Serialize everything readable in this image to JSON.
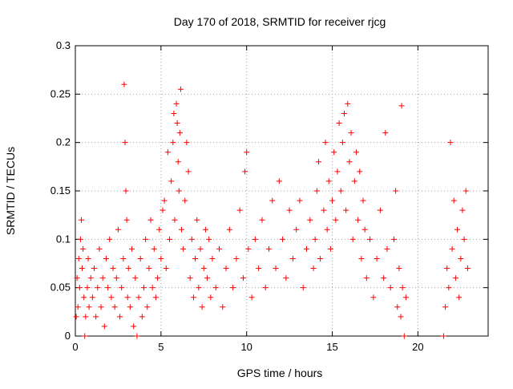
{
  "chart_data": {
    "type": "scatter",
    "title": "Day 170 of 2018, SRMTID for receiver rjcg",
    "xlabel": "GPS time / hours",
    "ylabel": "SRMTID / TECUs",
    "xlim": [
      0,
      24.1
    ],
    "ylim": [
      0,
      0.3
    ],
    "x_ticks": [
      0,
      5,
      10,
      15,
      20
    ],
    "x_tick_labels": [
      "0",
      "5",
      "10",
      "15",
      "20"
    ],
    "y_ticks": [
      0,
      0.05,
      0.1,
      0.15,
      0.2,
      0.25,
      0.3
    ],
    "y_tick_labels": [
      "0",
      "0.05",
      "0.1",
      "0.15",
      "0.2",
      "0.25",
      "0.3"
    ],
    "grid": true,
    "marker": "+",
    "series_color": "#ff0000",
    "series": [
      {
        "values": [
          [
            0.05,
            0.02
          ],
          [
            0.1,
            0.06
          ],
          [
            0.15,
            0.03
          ],
          [
            0.2,
            0.08
          ],
          [
            0.25,
            0.05
          ],
          [
            0.3,
            0.1
          ],
          [
            0.35,
            0.12
          ],
          [
            0.4,
            0.07
          ],
          [
            0.45,
            0.09
          ],
          [
            0.5,
            0.04
          ],
          [
            0.55,
            0.0
          ],
          [
            0.6,
            0.02
          ],
          [
            0.7,
            0.05
          ],
          [
            0.75,
            0.08
          ],
          [
            0.8,
            0.03
          ],
          [
            0.9,
            0.06
          ],
          [
            1.0,
            0.04
          ],
          [
            1.1,
            0.07
          ],
          [
            1.2,
            0.02
          ],
          [
            1.3,
            0.05
          ],
          [
            1.4,
            0.09
          ],
          [
            1.5,
            0.03
          ],
          [
            1.6,
            0.06
          ],
          [
            1.7,
            0.01
          ],
          [
            1.8,
            0.08
          ],
          [
            1.9,
            0.05
          ],
          [
            2.0,
            0.1
          ],
          [
            2.1,
            0.04
          ],
          [
            2.2,
            0.07
          ],
          [
            2.3,
            0.03
          ],
          [
            2.4,
            0.06
          ],
          [
            2.5,
            0.11
          ],
          [
            2.6,
            0.02
          ],
          [
            2.7,
            0.05
          ],
          [
            2.8,
            0.08
          ],
          [
            2.85,
            0.26
          ],
          [
            2.9,
            0.2
          ],
          [
            2.95,
            0.15
          ],
          [
            3.0,
            0.12
          ],
          [
            3.05,
            0.04
          ],
          [
            3.1,
            0.07
          ],
          [
            3.2,
            0.03
          ],
          [
            3.3,
            0.09
          ],
          [
            3.4,
            0.01
          ],
          [
            3.5,
            0.06
          ],
          [
            3.6,
            0.0
          ],
          [
            3.7,
            0.04
          ],
          [
            3.8,
            0.08
          ],
          [
            3.9,
            0.02
          ],
          [
            4.0,
            0.05
          ],
          [
            4.1,
            0.1
          ],
          [
            4.2,
            0.03
          ],
          [
            4.3,
            0.07
          ],
          [
            4.4,
            0.12
          ],
          [
            4.5,
            0.05
          ],
          [
            4.6,
            0.09
          ],
          [
            4.7,
            0.04
          ],
          [
            4.8,
            0.06
          ],
          [
            4.9,
            0.11
          ],
          [
            5.0,
            0.08
          ],
          [
            5.1,
            0.13
          ],
          [
            5.2,
            0.14
          ],
          [
            5.3,
            0.07
          ],
          [
            5.4,
            0.19
          ],
          [
            5.5,
            0.1
          ],
          [
            5.6,
            0.16
          ],
          [
            5.7,
            0.2
          ],
          [
            5.75,
            0.23
          ],
          [
            5.8,
            0.12
          ],
          [
            5.9,
            0.24
          ],
          [
            5.95,
            0.22
          ],
          [
            6.0,
            0.18
          ],
          [
            6.05,
            0.15
          ],
          [
            6.1,
            0.21
          ],
          [
            6.15,
            0.255
          ],
          [
            6.2,
            0.11
          ],
          [
            6.3,
            0.09
          ],
          [
            6.4,
            0.14
          ],
          [
            6.5,
            0.2
          ],
          [
            6.6,
            0.17
          ],
          [
            6.7,
            0.06
          ],
          [
            6.8,
            0.1
          ],
          [
            6.9,
            0.04
          ],
          [
            7.0,
            0.08
          ],
          [
            7.1,
            0.12
          ],
          [
            7.2,
            0.05
          ],
          [
            7.3,
            0.09
          ],
          [
            7.4,
            0.03
          ],
          [
            7.5,
            0.07
          ],
          [
            7.6,
            0.11
          ],
          [
            7.7,
            0.06
          ],
          [
            7.8,
            0.1
          ],
          [
            7.9,
            0.04
          ],
          [
            8.0,
            0.08
          ],
          [
            8.2,
            0.05
          ],
          [
            8.4,
            0.09
          ],
          [
            8.6,
            0.03
          ],
          [
            8.8,
            0.07
          ],
          [
            9.0,
            0.11
          ],
          [
            9.2,
            0.05
          ],
          [
            9.4,
            0.08
          ],
          [
            9.6,
            0.13
          ],
          [
            9.8,
            0.06
          ],
          [
            9.9,
            0.17
          ],
          [
            10.0,
            0.19
          ],
          [
            10.1,
            0.09
          ],
          [
            10.3,
            0.04
          ],
          [
            10.5,
            0.1
          ],
          [
            10.7,
            0.07
          ],
          [
            10.9,
            0.12
          ],
          [
            11.1,
            0.05
          ],
          [
            11.3,
            0.09
          ],
          [
            11.5,
            0.14
          ],
          [
            11.7,
            0.07
          ],
          [
            11.9,
            0.16
          ],
          [
            12.1,
            0.1
          ],
          [
            12.3,
            0.06
          ],
          [
            12.5,
            0.13
          ],
          [
            12.7,
            0.08
          ],
          [
            12.9,
            0.11
          ],
          [
            13.1,
            0.14
          ],
          [
            13.3,
            0.05
          ],
          [
            13.5,
            0.09
          ],
          [
            13.7,
            0.12
          ],
          [
            13.9,
            0.07
          ],
          [
            14.0,
            0.1
          ],
          [
            14.1,
            0.15
          ],
          [
            14.2,
            0.18
          ],
          [
            14.3,
            0.08
          ],
          [
            14.5,
            0.13
          ],
          [
            14.6,
            0.2
          ],
          [
            14.7,
            0.11
          ],
          [
            14.8,
            0.16
          ],
          [
            14.9,
            0.09
          ],
          [
            15.0,
            0.14
          ],
          [
            15.1,
            0.19
          ],
          [
            15.2,
            0.12
          ],
          [
            15.3,
            0.17
          ],
          [
            15.4,
            0.22
          ],
          [
            15.5,
            0.15
          ],
          [
            15.6,
            0.2
          ],
          [
            15.7,
            0.23
          ],
          [
            15.8,
            0.13
          ],
          [
            15.9,
            0.24
          ],
          [
            16.0,
            0.18
          ],
          [
            16.1,
            0.21
          ],
          [
            16.2,
            0.1
          ],
          [
            16.3,
            0.16
          ],
          [
            16.4,
            0.19
          ],
          [
            16.5,
            0.12
          ],
          [
            16.6,
            0.17
          ],
          [
            16.7,
            0.08
          ],
          [
            16.8,
            0.14
          ],
          [
            16.9,
            0.11
          ],
          [
            17.0,
            0.06
          ],
          [
            17.2,
            0.1
          ],
          [
            17.4,
            0.04
          ],
          [
            17.6,
            0.08
          ],
          [
            17.8,
            0.13
          ],
          [
            18.0,
            0.06
          ],
          [
            18.1,
            0.21
          ],
          [
            18.2,
            0.09
          ],
          [
            18.4,
            0.05
          ],
          [
            18.6,
            0.1
          ],
          [
            18.7,
            0.15
          ],
          [
            18.8,
            0.03
          ],
          [
            18.9,
            0.07
          ],
          [
            19.0,
            0.02
          ],
          [
            19.05,
            0.238
          ],
          [
            19.1,
            0.05
          ],
          [
            19.2,
            0.0
          ],
          [
            19.3,
            0.04
          ],
          [
            21.5,
            0.0
          ],
          [
            21.6,
            0.03
          ],
          [
            21.7,
            0.07
          ],
          [
            21.8,
            0.05
          ],
          [
            21.9,
            0.2
          ],
          [
            22.0,
            0.09
          ],
          [
            22.1,
            0.14
          ],
          [
            22.2,
            0.06
          ],
          [
            22.3,
            0.11
          ],
          [
            22.4,
            0.04
          ],
          [
            22.5,
            0.08
          ],
          [
            22.6,
            0.13
          ],
          [
            22.7,
            0.1
          ],
          [
            22.8,
            0.15
          ],
          [
            22.9,
            0.07
          ]
        ]
      }
    ]
  }
}
